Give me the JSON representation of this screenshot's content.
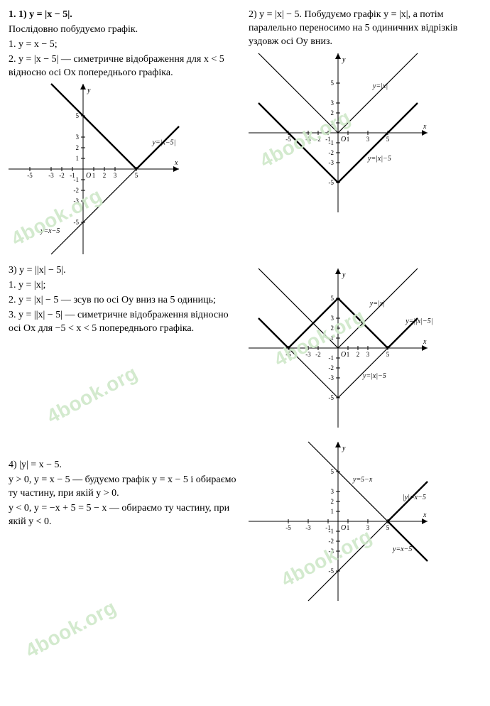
{
  "watermark": {
    "text": "4book.org",
    "color": "#cfe8c9",
    "fontsize": 28
  },
  "problem1": {
    "heading": "1. 1) y = |x − 5|.",
    "lines": [
      "Послідовно побудуємо графік.",
      "1. y = x − 5;",
      "2. y = |x − 5| — симетричне відображення для x < 5 відносно осі Ox попереднього графіка."
    ],
    "chart": {
      "xlim": [
        -7,
        9
      ],
      "ylim": [
        -8,
        8
      ],
      "unit": 15,
      "xticks": [
        -5,
        -3,
        -2,
        -1,
        1,
        2,
        3,
        5
      ],
      "yticks": [
        -5,
        -3,
        -2,
        -1,
        1,
        2,
        3,
        5
      ],
      "lines": [
        {
          "pts": [
            [
              -3,
              -8
            ],
            [
              9,
              4
            ]
          ],
          "class": "chart-line-thin",
          "label": "y=x−5",
          "labelpos": [
            -4,
            -6
          ]
        },
        {
          "pts": [
            [
              -3,
              8
            ],
            [
              5,
              0
            ],
            [
              9,
              4
            ]
          ],
          "class": "chart-line-bold",
          "label": "y=|x−5|",
          "labelpos": [
            6.5,
            2.3
          ]
        }
      ],
      "axis_labels": {
        "x": "x",
        "y": "y",
        "O": "O"
      }
    }
  },
  "problem2": {
    "heading": "2) y = |x| − 5. Побудуємо графік y = |x|, а потім паралельно переносимо на 5 одиничних відрізків уздовж осі Oy вниз.",
    "chart": {
      "xlim": [
        -9,
        9
      ],
      "ylim": [
        -8,
        8
      ],
      "unit": 14,
      "xticks": [
        -5,
        -3,
        -2,
        -1,
        1,
        3,
        5
      ],
      "yticks": [
        -5,
        -3,
        -2,
        -1,
        1,
        2,
        3,
        5
      ],
      "lines": [
        {
          "pts": [
            [
              -8,
              8
            ],
            [
              0,
              0
            ],
            [
              8,
              8
            ]
          ],
          "class": "chart-line-thin",
          "label": "y=|x|",
          "labelpos": [
            3.5,
            4.5
          ]
        },
        {
          "pts": [
            [
              -8,
              3
            ],
            [
              0,
              -5
            ],
            [
              8,
              3
            ]
          ],
          "class": "chart-line-bold",
          "label": "y=|x|−5",
          "labelpos": [
            3,
            -2.8
          ]
        }
      ],
      "axis_labels": {
        "x": "x",
        "y": "y",
        "O": "O"
      }
    }
  },
  "problem3": {
    "heading": "3) y = ||x| − 5|.",
    "lines": [
      "1. y = |x|;",
      "2. y = |x| − 5 — зсув по осі Oy вниз на 5 одиниць;",
      "3. y = ||x| − 5| — симетричне відображення відносно осі Ox для −5 < x < 5 попереднього графіка."
    ],
    "chart": {
      "xlim": [
        -9,
        9
      ],
      "ylim": [
        -8,
        8
      ],
      "unit": 14,
      "xticks": [
        -5,
        -3,
        -2,
        1,
        2,
        3,
        5
      ],
      "yticks": [
        -5,
        -3,
        -2,
        -1,
        1,
        2,
        3,
        5
      ],
      "lines": [
        {
          "pts": [
            [
              -8,
              8
            ],
            [
              0,
              0
            ],
            [
              8,
              8
            ]
          ],
          "class": "chart-line-thin",
          "label": "y=|x|",
          "labelpos": [
            3.2,
            4.3
          ]
        },
        {
          "pts": [
            [
              -8,
              3
            ],
            [
              0,
              -5
            ],
            [
              8,
              3
            ]
          ],
          "class": "chart-line-thin",
          "label": "y=|x|−5",
          "labelpos": [
            2.5,
            -3
          ]
        },
        {
          "pts": [
            [
              -8,
              3
            ],
            [
              -5,
              0
            ],
            [
              0,
              5
            ],
            [
              5,
              0
            ],
            [
              8,
              3
            ]
          ],
          "class": "chart-line-bold",
          "label": "y=||x|−5|",
          "labelpos": [
            6.8,
            2.5
          ]
        }
      ],
      "axis_labels": {
        "x": "x",
        "y": "y",
        "O": "O"
      }
    }
  },
  "problem4": {
    "heading": "4) |y| = x − 5.",
    "lines": [
      "y > 0, y = x − 5 — будуємо графік y = x − 5 і обираємо ту частину, при якій y > 0.",
      "y < 0, y = −x + 5 = 5 − x — обираємо ту частину, при якій y < 0."
    ],
    "chart": {
      "xlim": [
        -9,
        9
      ],
      "ylim": [
        -8,
        8
      ],
      "unit": 14,
      "xticks": [
        -5,
        -3,
        -1,
        1,
        3,
        5
      ],
      "yticks": [
        -5,
        -3,
        -2,
        -1,
        1,
        2,
        3,
        5
      ],
      "lines": [
        {
          "pts": [
            [
              -3,
              -8
            ],
            [
              9,
              4
            ]
          ],
          "class": "chart-line-thin",
          "label": "y=x−5",
          "labelpos": [
            5.5,
            -3
          ]
        },
        {
          "pts": [
            [
              -3,
              8
            ],
            [
              9,
              -4
            ]
          ],
          "class": "chart-line-thin",
          "label": "y=5−x",
          "labelpos": [
            1.5,
            4
          ]
        },
        {
          "pts": [
            [
              9,
              4
            ],
            [
              5,
              0
            ],
            [
              9,
              -4
            ]
          ],
          "class": "chart-line-bold",
          "label": "|y|=x−5",
          "labelpos": [
            6.5,
            2.2
          ]
        }
      ],
      "axis_labels": {
        "x": "x",
        "y": "y",
        "O": "O"
      }
    }
  }
}
